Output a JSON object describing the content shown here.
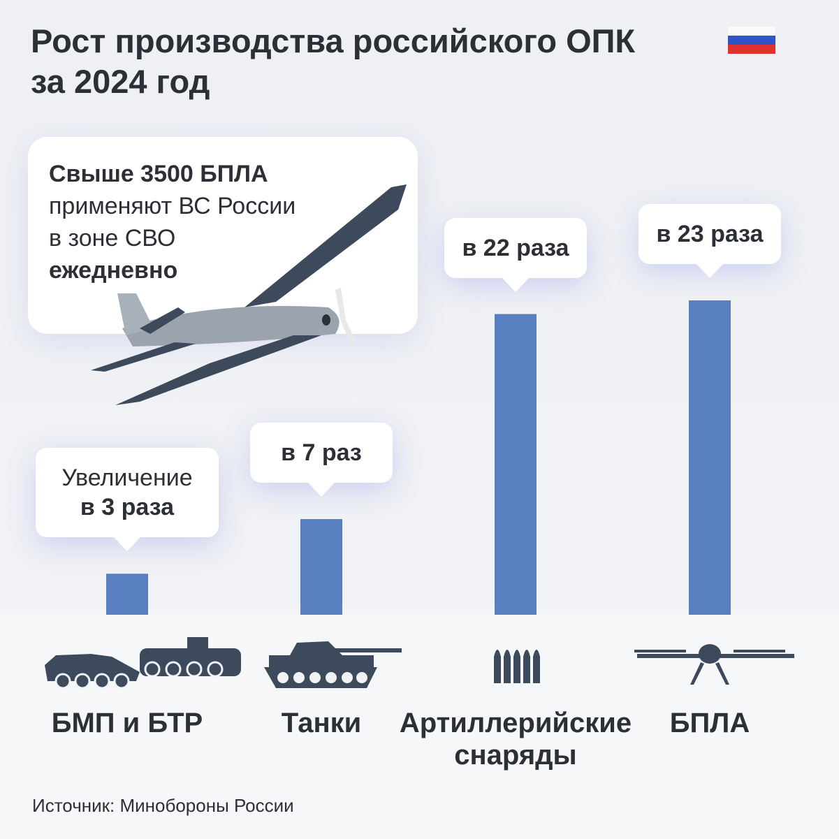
{
  "chart_data": {
    "type": "bar",
    "title": [
      "Рост производства российского ОПК",
      "за 2024 год"
    ],
    "categories": [
      "БМП и БТР",
      "Танки",
      "Артиллерийские снаряды",
      "БПЛА"
    ],
    "values": [
      3,
      7,
      22,
      23
    ],
    "value_labels": [
      "в 3 раза",
      "в 7 раз",
      "в 22 раза",
      "в 23 раза"
    ],
    "annotation": "Увеличение",
    "color": "#5880c0",
    "callout": [
      "Свыше 3500 БПЛА",
      "применяют ВС России",
      "в зоне СВО",
      "ежедневно"
    ],
    "source": "Источник: Минобороны России"
  }
}
